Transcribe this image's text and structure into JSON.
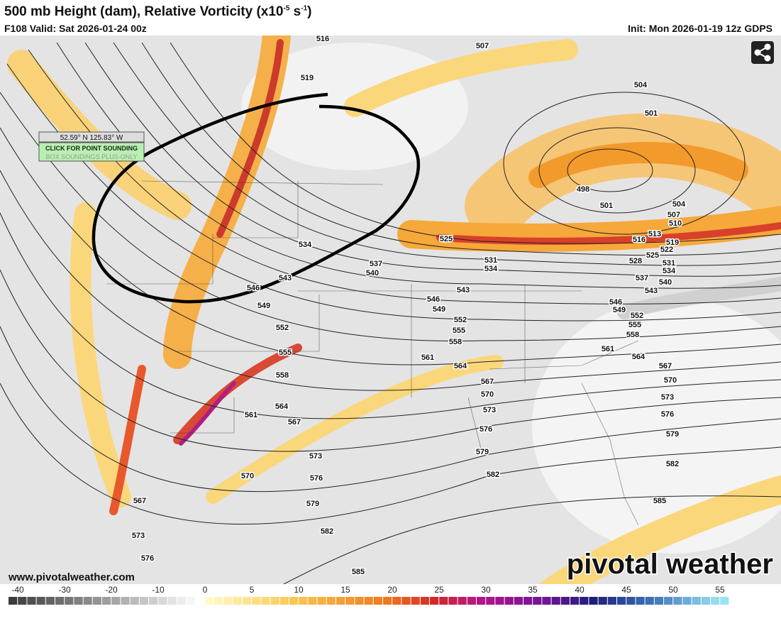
{
  "header": {
    "title_main": "500 mb Height (dam), Relative Vorticity (x10",
    "title_exp1": "-5",
    "title_unit": " s",
    "title_exp2": "-1",
    "title_close": ")",
    "valid": "F108 Valid: Sat 2026-01-24 00z",
    "init": "Init: Mon 2026-01-19 12z GDPS"
  },
  "tooltip": {
    "coords": "52.59° N 125.83° W",
    "button": "CLICK FOR POINT SOUNDING",
    "note": "BOX SOUNDINGS PLUS-ONLY"
  },
  "contour_labels": [
    516,
    507,
    519,
    504,
    501,
    498,
    501,
    504,
    507,
    510,
    513,
    516,
    519,
    522,
    525,
    525,
    528,
    531,
    531,
    534,
    534,
    534,
    537,
    537,
    540,
    540,
    543,
    543,
    543,
    546,
    546,
    546,
    549,
    549,
    549,
    552,
    552,
    552,
    555,
    555,
    555,
    558,
    558,
    558,
    561,
    561,
    561,
    564,
    564,
    564,
    567,
    567,
    567,
    567,
    570,
    570,
    570,
    573,
    573,
    573,
    573,
    576,
    576,
    576,
    576,
    579,
    579,
    579,
    582,
    582,
    582,
    585,
    585
  ],
  "colorbar": {
    "ticks": [
      -40,
      -30,
      -20,
      -10,
      0,
      5,
      10,
      15,
      20,
      25,
      30,
      35,
      40,
      45,
      50,
      55
    ]
  },
  "footer": {
    "url": "www.pivotalweather.com",
    "logo": "pivotal weather"
  }
}
